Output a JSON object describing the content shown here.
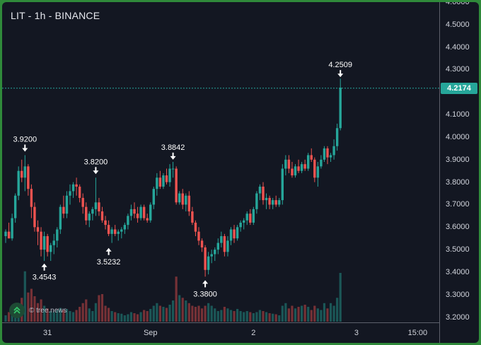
{
  "header": {
    "title": "LIT - 1h - BINANCE"
  },
  "watermark": {
    "text": "© tree.news",
    "icon": "double-chevron-up-icon"
  },
  "colors": {
    "background": "#131722",
    "up": "#26a69a",
    "down": "#ef5350",
    "outer_border": "#2f8a3a",
    "last_price_line": "#26a69a"
  },
  "last_price": {
    "label": "4.2174",
    "value": 4.2174
  },
  "chart_data": {
    "type": "candlestick",
    "title": "LIT - 1h - BINANCE",
    "ylim": [
      3.18,
      4.6
    ],
    "y_ticks": [
      "4.6000",
      "4.5000",
      "4.4000",
      "4.3000",
      "4.2000",
      "4.1000",
      "4.0000",
      "3.9000",
      "3.8000",
      "3.7000",
      "3.6000",
      "3.5000",
      "3.4000",
      "3.3000",
      "3.2000"
    ],
    "x_ticks": [
      {
        "label": "31",
        "bar": 13
      },
      {
        "label": "Sep",
        "bar": 45
      },
      {
        "label": "2",
        "bar": 77
      },
      {
        "label": "3",
        "bar": 109
      },
      {
        "label": "15:00",
        "bar": 128
      }
    ],
    "bars": [
      [
        3.56,
        3.59,
        3.53,
        3.58,
        0.12
      ],
      [
        3.58,
        3.62,
        3.55,
        3.55,
        0.18
      ],
      [
        3.55,
        3.66,
        3.54,
        3.64,
        0.22
      ],
      [
        3.64,
        3.75,
        3.62,
        3.74,
        0.25
      ],
      [
        3.74,
        3.87,
        3.72,
        3.85,
        0.3
      ],
      [
        3.85,
        3.9,
        3.8,
        3.82,
        0.45
      ],
      [
        3.82,
        3.92,
        3.76,
        3.87,
        0.95
      ],
      [
        3.87,
        3.88,
        3.74,
        3.77,
        0.55
      ],
      [
        3.77,
        3.79,
        3.64,
        3.69,
        0.62
      ],
      [
        3.69,
        3.71,
        3.58,
        3.6,
        0.48
      ],
      [
        3.6,
        3.63,
        3.52,
        3.58,
        0.35
      ],
      [
        3.58,
        3.6,
        3.47,
        3.5,
        0.42
      ],
      [
        3.5,
        3.58,
        3.45,
        3.56,
        0.3
      ],
      [
        3.56,
        3.57,
        3.47,
        3.49,
        0.25
      ],
      [
        3.49,
        3.53,
        3.45,
        3.52,
        0.2
      ],
      [
        3.52,
        3.57,
        3.48,
        3.54,
        0.18
      ],
      [
        3.54,
        3.6,
        3.51,
        3.59,
        0.22
      ],
      [
        3.59,
        3.7,
        3.57,
        3.69,
        0.26
      ],
      [
        3.69,
        3.74,
        3.64,
        3.66,
        0.22
      ],
      [
        3.66,
        3.76,
        3.64,
        3.74,
        0.24
      ],
      [
        3.74,
        3.79,
        3.7,
        3.76,
        0.2
      ],
      [
        3.76,
        3.8,
        3.73,
        3.79,
        0.18
      ],
      [
        3.79,
        3.82,
        3.74,
        3.78,
        0.22
      ],
      [
        3.78,
        3.79,
        3.71,
        3.73,
        0.28
      ],
      [
        3.73,
        3.75,
        3.66,
        3.69,
        0.35
      ],
      [
        3.69,
        3.71,
        3.61,
        3.63,
        0.42
      ],
      [
        3.63,
        3.67,
        3.6,
        3.66,
        0.25
      ],
      [
        3.66,
        3.69,
        3.63,
        3.68,
        0.2
      ],
      [
        3.68,
        3.82,
        3.65,
        3.71,
        0.35
      ],
      [
        3.71,
        3.73,
        3.65,
        3.67,
        0.5
      ],
      [
        3.67,
        3.69,
        3.62,
        3.63,
        0.52
      ],
      [
        3.63,
        3.65,
        3.59,
        3.61,
        0.3
      ],
      [
        3.61,
        3.63,
        3.56,
        3.57,
        0.26
      ],
      [
        3.57,
        3.6,
        3.53,
        3.59,
        0.2
      ],
      [
        3.59,
        3.61,
        3.56,
        3.57,
        0.18
      ],
      [
        3.57,
        3.59,
        3.54,
        3.58,
        0.16
      ],
      [
        3.58,
        3.6,
        3.55,
        3.59,
        0.15
      ],
      [
        3.59,
        3.62,
        3.57,
        3.61,
        0.12
      ],
      [
        3.61,
        3.66,
        3.59,
        3.65,
        0.14
      ],
      [
        3.65,
        3.7,
        3.63,
        3.68,
        0.18
      ],
      [
        3.68,
        3.71,
        3.64,
        3.66,
        0.16
      ],
      [
        3.66,
        3.69,
        3.62,
        3.64,
        0.14
      ],
      [
        3.64,
        3.7,
        3.63,
        3.69,
        0.18
      ],
      [
        3.69,
        3.7,
        3.63,
        3.64,
        0.22
      ],
      [
        3.64,
        3.66,
        3.62,
        3.63,
        0.2
      ],
      [
        3.63,
        3.71,
        3.62,
        3.7,
        0.24
      ],
      [
        3.7,
        3.78,
        3.68,
        3.77,
        0.3
      ],
      [
        3.77,
        3.84,
        3.74,
        3.82,
        0.35
      ],
      [
        3.82,
        3.85,
        3.77,
        3.78,
        0.3
      ],
      [
        3.78,
        3.84,
        3.77,
        3.83,
        0.28
      ],
      [
        3.83,
        3.86,
        3.79,
        3.8,
        0.26
      ],
      [
        3.8,
        3.88,
        3.78,
        3.86,
        0.32
      ],
      [
        3.86,
        3.89,
        3.82,
        3.86,
        0.4
      ],
      [
        3.86,
        3.87,
        3.7,
        3.71,
        0.85
      ],
      [
        3.71,
        3.76,
        3.7,
        3.75,
        0.5
      ],
      [
        3.75,
        3.77,
        3.68,
        3.7,
        0.45
      ],
      [
        3.7,
        3.75,
        3.67,
        3.74,
        0.4
      ],
      [
        3.74,
        3.76,
        3.65,
        3.67,
        0.35
      ],
      [
        3.67,
        3.69,
        3.61,
        3.62,
        0.3
      ],
      [
        3.62,
        3.63,
        3.56,
        3.58,
        0.28
      ],
      [
        3.58,
        3.6,
        3.52,
        3.54,
        0.3
      ],
      [
        3.54,
        3.55,
        3.49,
        3.51,
        0.25
      ],
      [
        3.51,
        3.52,
        3.38,
        3.41,
        0.3
      ],
      [
        3.41,
        3.49,
        3.39,
        3.47,
        0.35
      ],
      [
        3.47,
        3.5,
        3.44,
        3.48,
        0.3
      ],
      [
        3.48,
        3.51,
        3.45,
        3.5,
        0.25
      ],
      [
        3.5,
        3.55,
        3.48,
        3.53,
        0.2
      ],
      [
        3.53,
        3.58,
        3.51,
        3.56,
        0.22
      ],
      [
        3.56,
        3.57,
        3.47,
        3.49,
        0.28
      ],
      [
        3.49,
        3.56,
        3.47,
        3.54,
        0.25
      ],
      [
        3.54,
        3.6,
        3.52,
        3.59,
        0.22
      ],
      [
        3.59,
        3.61,
        3.53,
        3.55,
        0.2
      ],
      [
        3.55,
        3.61,
        3.54,
        3.6,
        0.24
      ],
      [
        3.6,
        3.63,
        3.58,
        3.62,
        0.2
      ],
      [
        3.62,
        3.64,
        3.59,
        3.63,
        0.18
      ],
      [
        3.63,
        3.67,
        3.61,
        3.66,
        0.2
      ],
      [
        3.66,
        3.68,
        3.61,
        3.62,
        0.18
      ],
      [
        3.62,
        3.69,
        3.61,
        3.68,
        0.16
      ],
      [
        3.68,
        3.76,
        3.66,
        3.75,
        0.18
      ],
      [
        3.75,
        3.79,
        3.72,
        3.78,
        0.22
      ],
      [
        3.78,
        3.8,
        3.7,
        3.72,
        0.2
      ],
      [
        3.72,
        3.75,
        3.68,
        3.73,
        0.18
      ],
      [
        3.73,
        3.74,
        3.68,
        3.7,
        0.16
      ],
      [
        3.7,
        3.73,
        3.68,
        3.72,
        0.15
      ],
      [
        3.72,
        3.74,
        3.69,
        3.7,
        0.14
      ],
      [
        3.7,
        3.73,
        3.69,
        3.72,
        0.12
      ],
      [
        3.72,
        3.88,
        3.7,
        3.86,
        0.3
      ],
      [
        3.86,
        3.92,
        3.83,
        3.9,
        0.35
      ],
      [
        3.9,
        3.92,
        3.84,
        3.86,
        0.25
      ],
      [
        3.86,
        3.89,
        3.82,
        3.83,
        0.3
      ],
      [
        3.83,
        3.88,
        3.82,
        3.87,
        0.25
      ],
      [
        3.87,
        3.9,
        3.84,
        3.85,
        0.28
      ],
      [
        3.85,
        3.89,
        3.84,
        3.88,
        0.3
      ],
      [
        3.88,
        3.9,
        3.85,
        3.86,
        0.32
      ],
      [
        3.86,
        3.93,
        3.85,
        3.92,
        0.28
      ],
      [
        3.92,
        3.95,
        3.89,
        3.9,
        0.22
      ],
      [
        3.9,
        3.91,
        3.8,
        3.82,
        0.3
      ],
      [
        3.82,
        3.89,
        3.78,
        3.87,
        0.25
      ],
      [
        3.87,
        3.92,
        3.86,
        3.9,
        0.22
      ],
      [
        3.9,
        3.96,
        3.89,
        3.95,
        0.35
      ],
      [
        3.95,
        3.96,
        3.88,
        3.91,
        0.25
      ],
      [
        3.91,
        3.93,
        3.89,
        3.92,
        0.35
      ],
      [
        3.92,
        3.99,
        3.9,
        3.96,
        0.3
      ],
      [
        3.96,
        4.06,
        3.94,
        4.04,
        0.45
      ],
      [
        4.04,
        4.26,
        4.03,
        4.22,
        0.92
      ]
    ],
    "annotations": [
      {
        "label": "3.9200",
        "bar": 6,
        "price": 3.92,
        "position": "above"
      },
      {
        "label": "3.4543",
        "bar": 12,
        "price": 3.4543,
        "position": "below"
      },
      {
        "label": "3.8200",
        "bar": 28,
        "price": 3.82,
        "position": "above"
      },
      {
        "label": "3.5232",
        "bar": 32,
        "price": 3.5232,
        "position": "below"
      },
      {
        "label": "3.8842",
        "bar": 52,
        "price": 3.8842,
        "position": "above"
      },
      {
        "label": "3.3800",
        "bar": 62,
        "price": 3.38,
        "position": "below"
      },
      {
        "label": "4.2509",
        "bar": 104,
        "price": 4.2509,
        "position": "above"
      }
    ]
  }
}
